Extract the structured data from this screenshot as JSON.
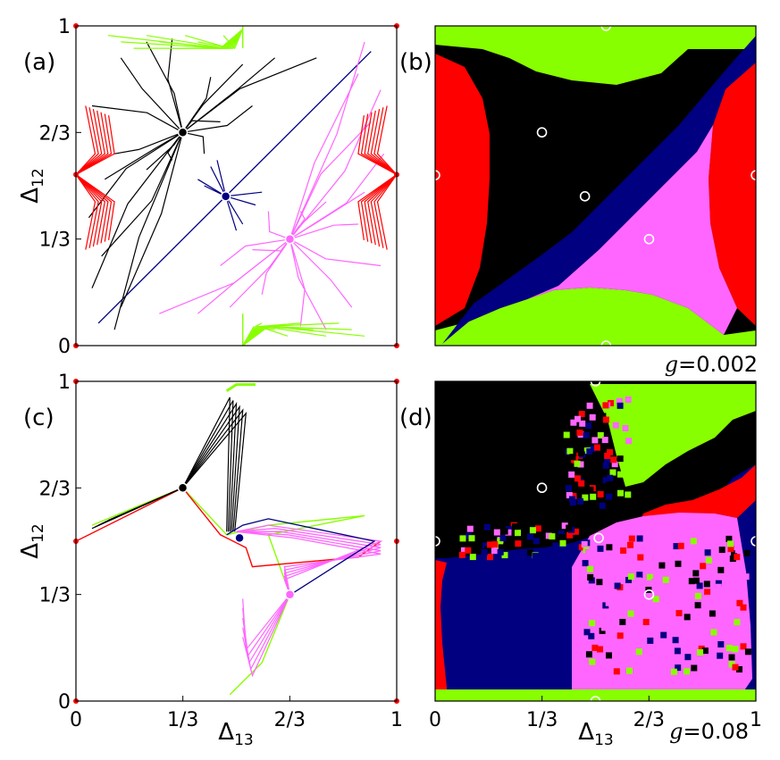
{
  "chart_data": [
    {
      "panel": "(a)",
      "type": "scatter",
      "title": "",
      "xlabel": "",
      "ylabel": "Δ12",
      "xlim": [
        0,
        1
      ],
      "ylim": [
        0,
        1
      ],
      "yticks": [
        "0",
        "1/3",
        "2/3",
        "1"
      ],
      "fixed_points": [
        {
          "x": 0.333,
          "y": 0.667,
          "color": "#000000"
        },
        {
          "x": 0.467,
          "y": 0.467,
          "color": "#000080"
        },
        {
          "x": 0.667,
          "y": 0.333,
          "color": "#ff66ff"
        }
      ],
      "series_colors": [
        "#000000",
        "#000080",
        "#ff66ff",
        "#88ff00",
        "#ff0000"
      ]
    },
    {
      "panel": "(b)",
      "type": "heatmap",
      "annotation": "g = 0.002",
      "xlim": [
        0,
        1
      ],
      "ylim": [
        0,
        1
      ],
      "markers": [
        {
          "x": 0.333,
          "y": 0.667
        },
        {
          "x": 0.467,
          "y": 0.467
        },
        {
          "x": 0.667,
          "y": 0.333
        },
        {
          "x": 0.0,
          "y": 0.533
        },
        {
          "x": 1.0,
          "y": 0.533
        },
        {
          "x": 0.533,
          "y": 1.0
        },
        {
          "x": 0.533,
          "y": 0.0
        }
      ],
      "basin_colors": [
        "#000000",
        "#000080",
        "#ff66ff",
        "#88ff00",
        "#ff0000"
      ]
    },
    {
      "panel": "(c)",
      "type": "line",
      "xlabel": "Δ13",
      "ylabel": "Δ12",
      "xlim": [
        0,
        1
      ],
      "ylim": [
        0,
        1
      ],
      "xticks": [
        "0",
        "1/3",
        "2/3",
        "1"
      ],
      "yticks": [
        "0",
        "1/3",
        "2/3",
        "1"
      ],
      "fixed_points": [
        {
          "x": 0.333,
          "y": 0.667,
          "color": "#000000"
        },
        {
          "x": 0.51,
          "y": 0.51,
          "color": "#000080"
        },
        {
          "x": 0.667,
          "y": 0.333,
          "color": "#ff66ff"
        }
      ]
    },
    {
      "panel": "(d)",
      "type": "heatmap",
      "annotation": "g = 0.08",
      "xlabel": "Δ13",
      "xlim": [
        0,
        1
      ],
      "ylim": [
        0,
        1
      ],
      "xticks": [
        "0",
        "1/3",
        "2/3",
        "1"
      ],
      "markers": [
        {
          "x": 0.333,
          "y": 0.667
        },
        {
          "x": 0.51,
          "y": 0.51
        },
        {
          "x": 0.667,
          "y": 0.333
        },
        {
          "x": 0.0,
          "y": 0.5
        },
        {
          "x": 1.0,
          "y": 0.5
        },
        {
          "x": 0.5,
          "y": 1.0
        },
        {
          "x": 0.5,
          "y": 0.0
        }
      ]
    }
  ],
  "labels": {
    "a": "(a)",
    "b": "(b)",
    "c": "(c)",
    "d": "(d)",
    "ylabel_base": "Δ",
    "ylabel_sub": "12",
    "xlabel_base": "Δ",
    "xlabel_sub": "13",
    "g_top_eq": "g",
    "g_top_val": "=0.002",
    "g_bot_eq": "g",
    "g_bot_val": "=0.08"
  },
  "ticks": {
    "y": [
      "1",
      "2/3",
      "1/3",
      "0"
    ],
    "x": [
      "0",
      "1/3",
      "2/3",
      "1"
    ]
  }
}
